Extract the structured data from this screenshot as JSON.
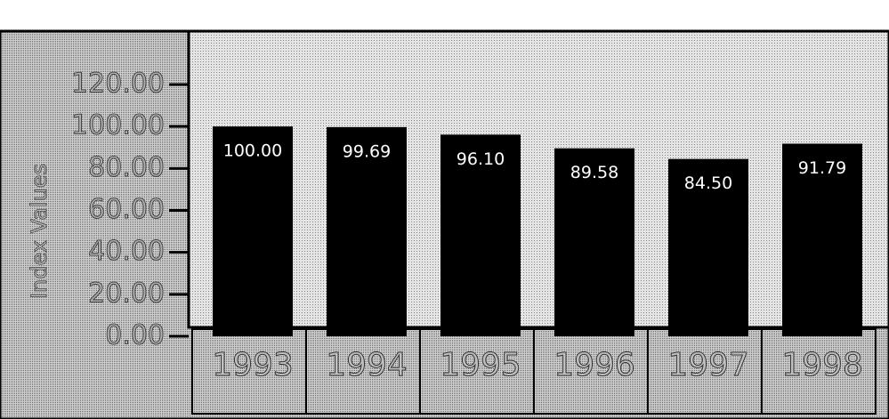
{
  "chart_data": {
    "type": "bar",
    "y_axis_label": "Index Values",
    "categories": [
      "1993",
      "1994",
      "1995",
      "1996",
      "1997",
      "1998"
    ],
    "values": [
      100,
      99.69,
      96.1,
      89.58,
      84.5,
      91.79
    ],
    "value_labels": [
      "100.00",
      "99.69",
      "96.10",
      "89.58",
      "84.50",
      "91.79"
    ],
    "color": "#000000",
    "ylim": [
      0,
      120
    ],
    "yticks": [
      {
        "value": 0,
        "label": "0.00"
      },
      {
        "value": 20,
        "label": "20.00"
      },
      {
        "value": 40,
        "label": "40.00"
      },
      {
        "value": 60,
        "label": "60.00"
      },
      {
        "value": 80,
        "label": "80.00"
      },
      {
        "value": 100,
        "label": "100.00"
      },
      {
        "value": 120,
        "label": "120.00"
      }
    ],
    "grid": false
  }
}
